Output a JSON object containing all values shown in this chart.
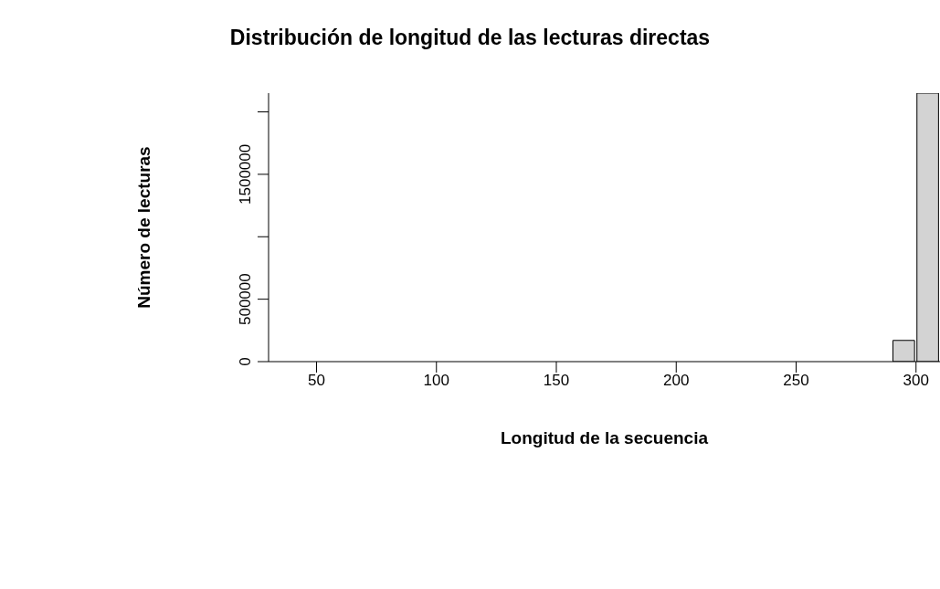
{
  "chart_data": {
    "type": "histogram",
    "title": "Distribución de longitud de las lecturas directas",
    "xlabel": "Longitud de la secuencia",
    "ylabel": "Número de lecturas",
    "bins": [
      30,
      40,
      50,
      60,
      70,
      80,
      90,
      100,
      110,
      120,
      130,
      140,
      150,
      160,
      170,
      180,
      190,
      200,
      210,
      220,
      230,
      240,
      250,
      260,
      270,
      280,
      290,
      300,
      310
    ],
    "values": [
      0,
      0,
      0,
      0,
      0,
      0,
      0,
      0,
      0,
      0,
      0,
      0,
      0,
      0,
      0,
      0,
      0,
      0,
      0,
      0,
      0,
      0,
      0,
      0,
      0,
      0,
      170000,
      2150000
    ],
    "color": "#d3d3d3",
    "xlim": [
      30,
      310
    ],
    "xticks": [
      50,
      100,
      150,
      200,
      250,
      300
    ],
    "ylim": [
      0,
      2150000
    ],
    "yticks": [
      0,
      500000,
      {
        "value": 1000000,
        "label": null
      },
      1500000,
      {
        "value": 2000000,
        "label": null
      }
    ]
  }
}
